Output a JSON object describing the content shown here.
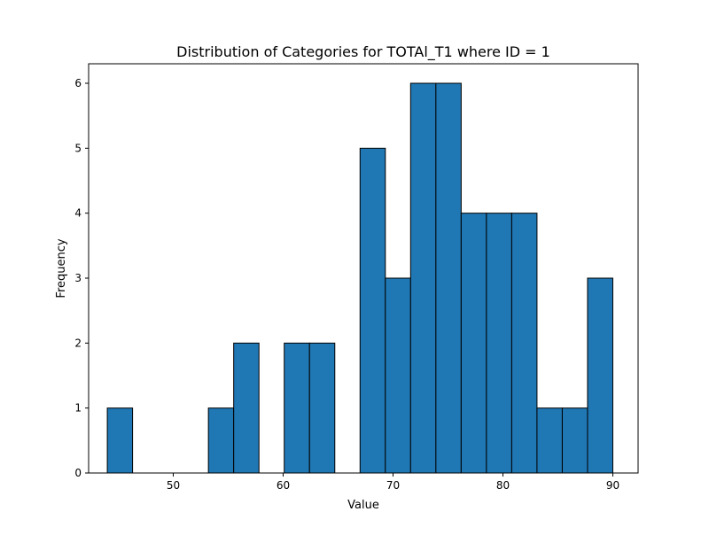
{
  "chart_data": {
    "type": "bar",
    "title": "Distribution of Categories for TOTAl_T1 where ID = 1",
    "xlabel": "Value",
    "ylabel": "Frequency",
    "x_range": [
      42.3,
      92.3
    ],
    "ylim": [
      0,
      6.3
    ],
    "x_ticks": [
      50,
      60,
      70,
      80,
      90
    ],
    "y_ticks": [
      0,
      1,
      2,
      3,
      4,
      5,
      6
    ],
    "bin_edges": [
      44,
      46.3,
      48.6,
      50.9,
      53.2,
      55.5,
      57.8,
      60.1,
      62.4,
      64.7,
      67.0,
      69.3,
      71.6,
      73.9,
      76.2,
      78.5,
      80.8,
      83.1,
      85.4,
      87.7,
      90.0
    ],
    "values": [
      1,
      0,
      0,
      0,
      1,
      2,
      0,
      2,
      2,
      0,
      5,
      3,
      6,
      6,
      4,
      4,
      4,
      1,
      1,
      3
    ],
    "bar_color": "#1f77b4",
    "edge_color": "#000000",
    "grid": false,
    "legend": false
  }
}
